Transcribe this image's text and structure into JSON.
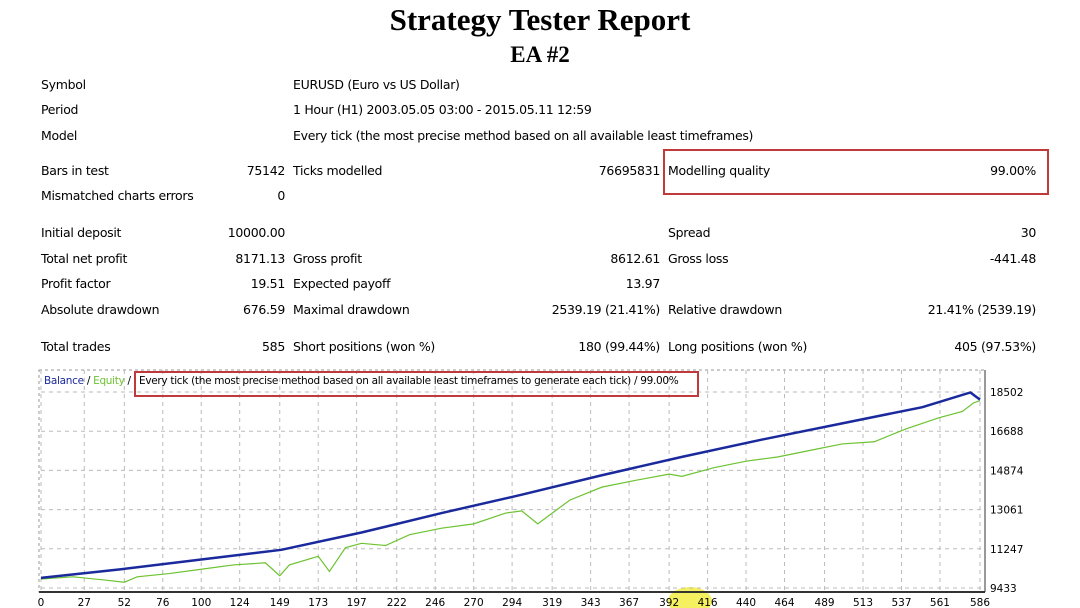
{
  "report": {
    "title": "Strategy Tester Report",
    "subtitle": "EA #2"
  },
  "rows": [
    {
      "top": 77,
      "cells": [
        {
          "label": "Symbol"
        },
        {
          "label": "EURUSD (Euro vs US Dollar)"
        }
      ]
    },
    {
      "top": 102,
      "cells": [
        {
          "label": "Period"
        },
        {
          "label": "1 Hour (H1) 2003.05.05 03:00 - 2015.05.11 12:59"
        }
      ]
    },
    {
      "top": 128,
      "cells": [
        {
          "label": "Model"
        },
        {
          "label": "Every tick (the most precise method based on all available least timeframes)"
        }
      ]
    },
    {
      "top": 163,
      "cells": [
        {
          "label": "Bars in test",
          "value": "75142"
        },
        {
          "label": "Ticks modelled",
          "value": "76695831"
        },
        {
          "label": "Modelling quality",
          "value": "99.00%"
        }
      ]
    },
    {
      "top": 188,
      "cells": [
        {
          "label": "Mismatched charts errors",
          "value": "0"
        }
      ]
    },
    {
      "top": 225,
      "cells": [
        {
          "label": "Initial deposit",
          "value": "10000.00"
        },
        {
          "label": "",
          "value": ""
        },
        {
          "label": "Spread",
          "value": "30"
        }
      ]
    },
    {
      "top": 251,
      "cells": [
        {
          "label": "Total net profit",
          "value": "8171.13"
        },
        {
          "label": "Gross profit",
          "value": "8612.61"
        },
        {
          "label": "Gross loss",
          "value": "-441.48"
        }
      ]
    },
    {
      "top": 276,
      "cells": [
        {
          "label": "Profit factor",
          "value": "19.51"
        },
        {
          "label": "Expected payoff",
          "value": "13.97"
        }
      ]
    },
    {
      "top": 302,
      "cells": [
        {
          "label": "Absolute drawdown",
          "value": "676.59"
        },
        {
          "label": "Maximal drawdown",
          "value": "2539.19 (21.41%)"
        },
        {
          "label": "Relative drawdown",
          "value": "21.41% (2539.19)"
        }
      ]
    },
    {
      "top": 339,
      "cells": [
        {
          "label": "Total trades",
          "value": "585"
        },
        {
          "label": "Short positions (won %)",
          "value": "180 (99.44%)"
        },
        {
          "label": "Long positions (won %)",
          "value": "405 (97.53%)"
        }
      ]
    }
  ],
  "colors": {
    "balance": "#1a2a9c",
    "equity": "#6cc230",
    "highlight": "#c0393b",
    "marker": "#f5f060"
  },
  "chart_data": {
    "type": "line",
    "legend": {
      "balance": "Balance",
      "sep1": " / ",
      "equity": "Equity",
      "sep2": " / ",
      "model": "Every tick (the most precise method based on all available least timeframes to generate each tick)",
      "sep3": " / ",
      "quality": "99.00%"
    },
    "xlim": [
      0,
      586
    ],
    "ylim": [
      9433,
      18502
    ],
    "x_ticks": [
      0,
      27,
      52,
      76,
      100,
      124,
      149,
      173,
      197,
      222,
      246,
      270,
      294,
      319,
      343,
      367,
      392,
      416,
      440,
      464,
      489,
      513,
      537,
      561,
      586
    ],
    "y_ticks": [
      9433,
      11247,
      13061,
      14874,
      16688,
      18502
    ],
    "grid": true,
    "series": [
      {
        "name": "Balance",
        "x": [
          0,
          50,
          100,
          150,
          200,
          250,
          300,
          350,
          400,
          450,
          500,
          550,
          580,
          586
        ],
        "y": [
          9900,
          10300,
          10750,
          11200,
          12000,
          12900,
          13750,
          14650,
          15500,
          16300,
          17050,
          17800,
          18480,
          18150
        ]
      },
      {
        "name": "Equity",
        "x": [
          0,
          20,
          40,
          52,
          60,
          80,
          100,
          120,
          140,
          149,
          155,
          173,
          180,
          190,
          200,
          215,
          230,
          250,
          270,
          290,
          300,
          310,
          330,
          350,
          370,
          392,
          400,
          420,
          440,
          460,
          480,
          500,
          520,
          540,
          560,
          575,
          582,
          586
        ],
        "y": [
          9850,
          9950,
          9800,
          9700,
          9950,
          10100,
          10300,
          10500,
          10600,
          10000,
          10500,
          10900,
          10200,
          11300,
          11500,
          11400,
          11900,
          12200,
          12400,
          12900,
          13000,
          12400,
          13500,
          14100,
          14400,
          14700,
          14600,
          15000,
          15300,
          15500,
          15800,
          16100,
          16200,
          16800,
          17300,
          17600,
          18000,
          18100
        ]
      }
    ]
  }
}
